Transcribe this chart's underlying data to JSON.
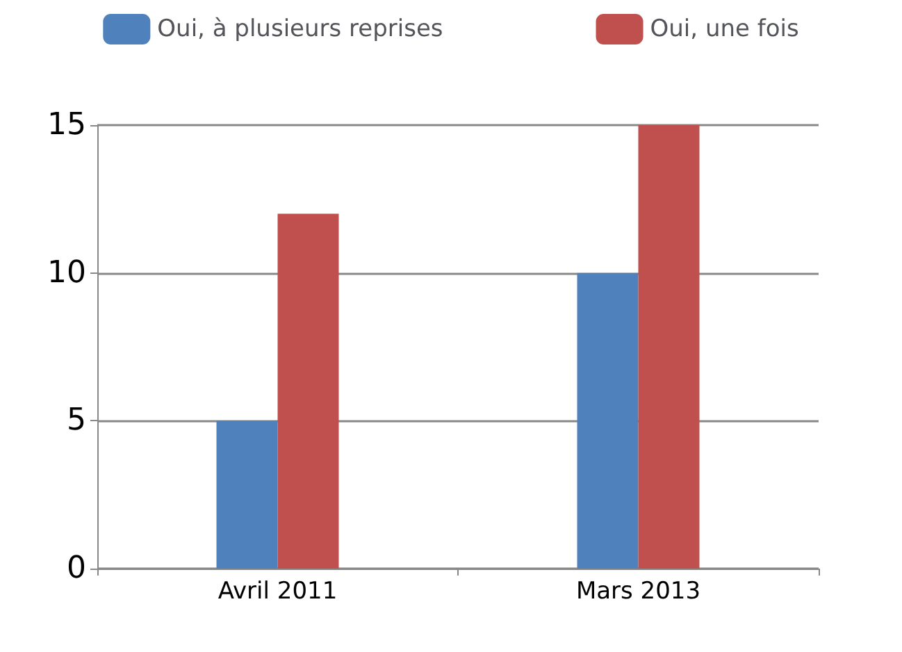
{
  "chart_data": {
    "type": "bar",
    "categories": [
      "Avril 2011",
      "Mars 2013"
    ],
    "series": [
      {
        "name": "Oui, à plusieurs reprises",
        "color": "#4f81bd",
        "values": [
          5,
          10
        ]
      },
      {
        "name": "Oui, une fois",
        "color": "#c0504d",
        "values": [
          12,
          15
        ]
      }
    ],
    "ylim": [
      0,
      15
    ],
    "yticks": [
      0,
      5,
      10,
      15
    ],
    "grid": "y",
    "legend": "top"
  }
}
